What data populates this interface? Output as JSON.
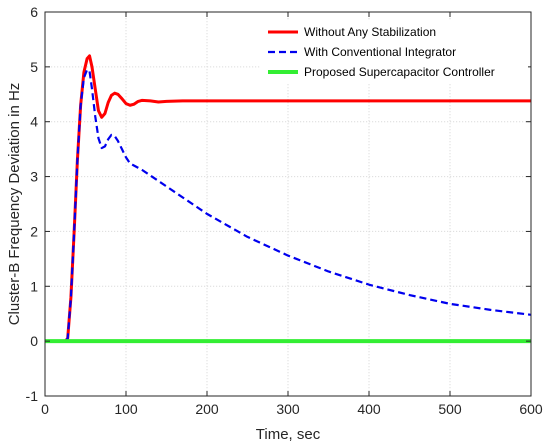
{
  "chart_data": {
    "type": "line",
    "title": "",
    "xlabel": "Time, sec",
    "ylabel": "Cluster-B Frequency Deviation in Hz",
    "xlim": [
      0,
      600
    ],
    "ylim": [
      -1,
      6
    ],
    "xticks": [
      0,
      100,
      200,
      300,
      400,
      500,
      600
    ],
    "yticks": [
      -1,
      0,
      1,
      2,
      3,
      4,
      5,
      6
    ],
    "grid": true,
    "legend_position": "top-right",
    "series": [
      {
        "name": "Without Any Stabilization",
        "color": "#ff0000",
        "style": "solid",
        "x": [
          0,
          25,
          28,
          32,
          36,
          40,
          44,
          48,
          52,
          55,
          58,
          62,
          66,
          70,
          74,
          78,
          82,
          86,
          90,
          95,
          100,
          105,
          110,
          115,
          120,
          130,
          140,
          150,
          170,
          200,
          250,
          300,
          400,
          500,
          600
        ],
        "y": [
          0,
          0,
          0.05,
          0.8,
          2.0,
          3.3,
          4.3,
          4.9,
          5.15,
          5.2,
          5.0,
          4.6,
          4.2,
          4.08,
          4.15,
          4.35,
          4.48,
          4.52,
          4.5,
          4.42,
          4.33,
          4.3,
          4.32,
          4.37,
          4.39,
          4.38,
          4.36,
          4.37,
          4.38,
          4.38,
          4.38,
          4.38,
          4.38,
          4.38,
          4.38
        ]
      },
      {
        "name": "With Conventional Integrator",
        "color": "#0000ee",
        "style": "dashed",
        "x": [
          0,
          25,
          28,
          32,
          36,
          40,
          44,
          48,
          52,
          55,
          58,
          62,
          66,
          70,
          74,
          78,
          82,
          86,
          90,
          95,
          100,
          105,
          110,
          120,
          130,
          150,
          200,
          250,
          300,
          350,
          400,
          450,
          500,
          550,
          600
        ],
        "y": [
          0,
          0,
          0.05,
          0.8,
          2.0,
          3.3,
          4.3,
          4.8,
          4.95,
          4.92,
          4.6,
          4.1,
          3.7,
          3.52,
          3.55,
          3.68,
          3.76,
          3.74,
          3.65,
          3.5,
          3.35,
          3.24,
          3.2,
          3.12,
          3.02,
          2.82,
          2.32,
          1.9,
          1.56,
          1.27,
          1.03,
          0.84,
          0.68,
          0.57,
          0.48
        ]
      },
      {
        "name": "Proposed Supercapacitor Controller",
        "color": "#33ee33",
        "style": "solid",
        "x": [
          0,
          100,
          200,
          300,
          400,
          500,
          600
        ],
        "y": [
          0,
          0,
          0,
          0,
          0,
          0,
          0
        ]
      }
    ]
  }
}
